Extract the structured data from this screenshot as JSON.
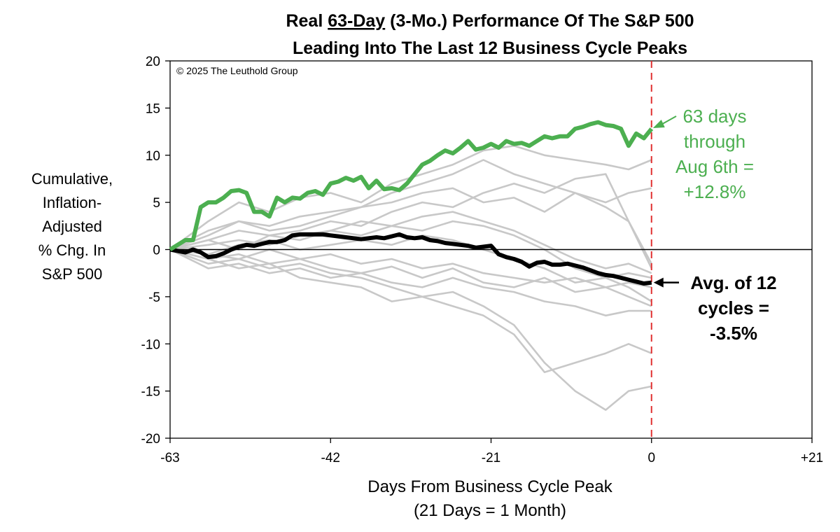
{
  "chart_data": {
    "type": "line",
    "title": "Real 63-Day (3-Mo.) Performance Of The S&P 500",
    "title_parts": {
      "prefix": "Real ",
      "underlined": "63-Day",
      "suffix": " (3-Mo.) Performance Of The S&P 500"
    },
    "subtitle": "Leading Into The Last 12 Business Cycle Peaks",
    "copyright": "© 2025 The Leuthold Group",
    "ylabel_lines": [
      "Cumulative,",
      "Inflation-",
      "Adjusted",
      "% Chg. In",
      "S&P 500"
    ],
    "xlabel_lines": [
      "Days From Business Cycle Peak",
      "(21 Days = 1 Month)"
    ],
    "xlim": [
      -63,
      21
    ],
    "ylim": [
      -20,
      20
    ],
    "x_ticks": [
      -63,
      -42,
      -21,
      0,
      21
    ],
    "x_tick_labels": [
      "-63",
      "-42",
      "-21",
      "0",
      "+21"
    ],
    "y_ticks": [
      -20,
      -15,
      -10,
      -5,
      0,
      5,
      10,
      15,
      20
    ],
    "y_tick_labels": [
      "-20",
      "-15",
      "-10",
      "-5",
      "0",
      "5",
      "10",
      "15",
      "20"
    ],
    "grid": false,
    "reference_line_x": 0,
    "colors": {
      "current": "#4caf50",
      "average": "#000000",
      "history": "#c8c8c8",
      "peak_line": "#e03030"
    },
    "annotations": {
      "current": [
        "63 days",
        "through",
        "Aug 6th =",
        "+12.8%"
      ],
      "average": [
        "Avg. of 12",
        "cycles =",
        "-3.5%"
      ]
    },
    "series": [
      {
        "role": "current",
        "x": [
          -63,
          -61,
          -60,
          -59,
          -58,
          -57,
          -56,
          -55,
          -54,
          -53,
          -52,
          -51,
          -50,
          -49,
          -48,
          -47,
          -46,
          -45,
          -44,
          -43,
          -42,
          -41,
          -40,
          -39,
          -38,
          -37,
          -36,
          -35,
          -34,
          -33,
          -32,
          -31,
          -30,
          -29,
          -28,
          -27,
          -26,
          -25,
          -24,
          -23,
          -22,
          -21,
          -20,
          -19,
          -18,
          -17,
          -16,
          -15,
          -14,
          -13,
          -12,
          -11,
          -10,
          -9,
          -8,
          -7,
          -6,
          -5,
          -4,
          -3,
          -2,
          -1,
          0
        ],
        "y": [
          0,
          1,
          1,
          4.5,
          5,
          5,
          5.5,
          6.2,
          6.3,
          6,
          4,
          4,
          3.5,
          5.5,
          5,
          5.5,
          5.4,
          6,
          6.2,
          5.8,
          7,
          7.2,
          7.6,
          7.3,
          7.7,
          6.5,
          7.3,
          6.4,
          6.5,
          6.3,
          7,
          8,
          9,
          9.4,
          10,
          10.5,
          10.2,
          10.8,
          11.5,
          10.6,
          10.8,
          11.2,
          10.8,
          11.5,
          11.2,
          11.3,
          11,
          11.5,
          12,
          11.8,
          12,
          12,
          12.8,
          13,
          13.3,
          13.5,
          13.2,
          13.1,
          12.8,
          11,
          12.3,
          11.8,
          12.8
        ]
      },
      {
        "role": "average",
        "x": [
          -63,
          -61,
          -60,
          -59,
          -58,
          -57,
          -56,
          -55,
          -54,
          -53,
          -52,
          -51,
          -50,
          -49,
          -48,
          -47,
          -46,
          -45,
          -44,
          -43,
          -42,
          -41,
          -40,
          -39,
          -38,
          -37,
          -36,
          -35,
          -34,
          -33,
          -32,
          -31,
          -30,
          -29,
          -28,
          -27,
          -26,
          -25,
          -24,
          -23,
          -22,
          -21,
          -20,
          -19,
          -18,
          -17,
          -16,
          -15,
          -14,
          -13,
          -12,
          -11,
          -10,
          -9,
          -8,
          -7,
          -6,
          -5,
          -4,
          -3,
          -2,
          -1,
          0
        ],
        "y": [
          0,
          -0.3,
          0,
          -0.3,
          -0.8,
          -0.7,
          -0.4,
          0,
          0.3,
          0.5,
          0.4,
          0.6,
          0.8,
          0.8,
          1,
          1.5,
          1.6,
          1.6,
          1.6,
          1.6,
          1.5,
          1.4,
          1.3,
          1.2,
          1.1,
          1.2,
          1.3,
          1.2,
          1.4,
          1.6,
          1.3,
          1.2,
          1.3,
          1,
          0.9,
          0.7,
          0.6,
          0.5,
          0.4,
          0.2,
          0.3,
          0.4,
          -0.5,
          -0.8,
          -1,
          -1.3,
          -1.8,
          -1.4,
          -1.3,
          -1.6,
          -1.6,
          -1.5,
          -1.7,
          -1.9,
          -2.2,
          -2.5,
          -2.7,
          -2.8,
          -3,
          -3.2,
          -3.4,
          -3.6,
          -3.5
        ]
      },
      {
        "role": "history",
        "x": [
          -63,
          -58,
          -54,
          -50,
          -46,
          -42,
          -38,
          -34,
          -30,
          -26,
          -22,
          -18,
          -14,
          -10,
          -6,
          -3,
          0
        ],
        "y": [
          0,
          -1,
          -0.5,
          -1.5,
          -1,
          -2,
          -2.5,
          -1.8,
          -3,
          -2,
          -3.5,
          -4,
          -3,
          -4.5,
          -4,
          -5,
          -6
        ]
      },
      {
        "role": "history",
        "x": [
          -63,
          -58,
          -54,
          -50,
          -46,
          -42,
          -38,
          -34,
          -30,
          -26,
          -22,
          -18,
          -14,
          -10,
          -6,
          -3,
          0
        ],
        "y": [
          0,
          1.5,
          3,
          2,
          2.5,
          3.5,
          4.5,
          5,
          6,
          6.5,
          5,
          5.5,
          4,
          6,
          4.5,
          3,
          -1.5
        ]
      },
      {
        "role": "history",
        "x": [
          -63,
          -58,
          -54,
          -50,
          -46,
          -42,
          -38,
          -34,
          -30,
          -26,
          -22,
          -18,
          -14,
          -10,
          -6,
          -3,
          0
        ],
        "y": [
          0,
          -0.5,
          0.5,
          1,
          0,
          0.5,
          1,
          0.5,
          1.5,
          1,
          0,
          -1,
          -2,
          -3.5,
          -3,
          -2.5,
          -3
        ]
      },
      {
        "role": "history",
        "x": [
          -63,
          -58,
          -54,
          -50,
          -46,
          -42,
          -38,
          -34,
          -30,
          -26,
          -22,
          -18,
          -14,
          -10,
          -6,
          -3,
          0
        ],
        "y": [
          0,
          -1.5,
          -1,
          -2,
          -1.5,
          -2.5,
          -3,
          -4,
          -5,
          -4.5,
          -6,
          -8,
          -12,
          -15,
          -17,
          -15,
          -14.5
        ]
      },
      {
        "role": "history",
        "x": [
          -63,
          -58,
          -54,
          -50,
          -46,
          -42,
          -38,
          -34,
          -30,
          -26,
          -22,
          -18,
          -14,
          -10,
          -6,
          -3,
          0
        ],
        "y": [
          0,
          -1,
          -2,
          -1.5,
          -3,
          -3.5,
          -4,
          -5.5,
          -5,
          -6,
          -7,
          -9,
          -13,
          -12,
          -11,
          -10,
          -11
        ]
      },
      {
        "role": "history",
        "x": [
          -63,
          -58,
          -54,
          -50,
          -46,
          -42,
          -38,
          -34,
          -30,
          -26,
          -22,
          -18,
          -14,
          -10,
          -6,
          -3,
          0
        ],
        "y": [
          0,
          2,
          3,
          2.5,
          3.5,
          4,
          4.5,
          6,
          7,
          8,
          9.5,
          8,
          7,
          6,
          5,
          6,
          6.5
        ]
      },
      {
        "role": "history",
        "x": [
          -63,
          -58,
          -54,
          -50,
          -46,
          -42,
          -38,
          -34,
          -30,
          -26,
          -22,
          -18,
          -14,
          -10,
          -6,
          -3,
          0
        ],
        "y": [
          0,
          3,
          5,
          4,
          5.5,
          6,
          5,
          7,
          8,
          9,
          10.5,
          11,
          10,
          9.5,
          9,
          8.5,
          9.5
        ]
      },
      {
        "role": "history",
        "x": [
          -63,
          -58,
          -54,
          -50,
          -46,
          -42,
          -38,
          -34,
          -30,
          -26,
          -22,
          -18,
          -14,
          -10,
          -6,
          -3,
          0
        ],
        "y": [
          0,
          1,
          2,
          1.5,
          2,
          3,
          2.5,
          4,
          5,
          4.5,
          6,
          7,
          6,
          7.5,
          8,
          3,
          -2
        ]
      },
      {
        "role": "history",
        "x": [
          -63,
          -58,
          -54,
          -50,
          -46,
          -42,
          -38,
          -34,
          -30,
          -26,
          -22,
          -18,
          -14,
          -10,
          -6,
          -3,
          0
        ],
        "y": [
          0,
          -0.5,
          -1,
          0,
          -1,
          -0.5,
          -1.5,
          -1,
          -2,
          -1.5,
          -2.5,
          -3,
          -3.5,
          -3,
          -4,
          -3.5,
          -4
        ]
      },
      {
        "role": "history",
        "x": [
          -63,
          -58,
          -54,
          -50,
          -46,
          -42,
          -38,
          -34,
          -30,
          -26,
          -22,
          -18,
          -14,
          -10,
          -6,
          -3,
          0
        ],
        "y": [
          0,
          0.5,
          1,
          0.5,
          1.5,
          2,
          1.5,
          2.5,
          2,
          3,
          2.5,
          1.5,
          0,
          -2,
          -3,
          -4,
          -5.5
        ]
      },
      {
        "role": "history",
        "x": [
          -63,
          -58,
          -54,
          -50,
          -46,
          -42,
          -38,
          -34,
          -30,
          -26,
          -22,
          -18,
          -14,
          -10,
          -6,
          -3,
          0
        ],
        "y": [
          0,
          -2,
          -1.5,
          -2.5,
          -2,
          -3,
          -2.5,
          -3.5,
          -4,
          -3,
          -4,
          -4.5,
          -5.5,
          -6,
          -7,
          -6.5,
          -6.5
        ]
      },
      {
        "role": "history",
        "x": [
          -63,
          -58,
          -54,
          -50,
          -46,
          -42,
          -38,
          -34,
          -30,
          -26,
          -22,
          -18,
          -14,
          -10,
          -6,
          -3,
          0
        ],
        "y": [
          0,
          1,
          0,
          1.5,
          1,
          2,
          3,
          2.5,
          3.5,
          4,
          3,
          2,
          0.5,
          -1,
          -2,
          -1.5,
          -2.5
        ]
      }
    ]
  }
}
